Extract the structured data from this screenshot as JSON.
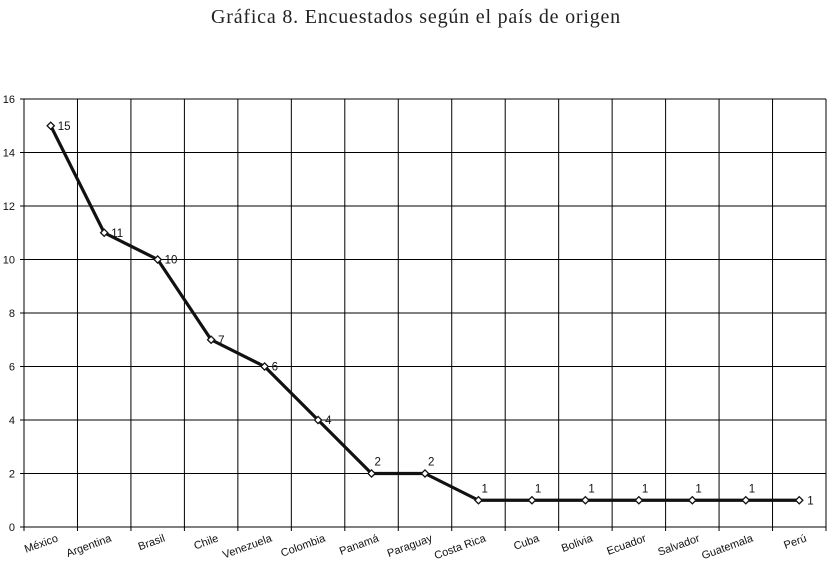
{
  "chart_data": {
    "type": "line",
    "title": "Gráfica 8. Encuestados según el país de origen",
    "categories": [
      "México",
      "Argentina",
      "Brasil",
      "Chile",
      "Venezuela",
      "Colombia",
      "Panamá",
      "Paraguay",
      "Costa Rica",
      "Cuba",
      "Bolivia",
      "Ecuador",
      "Salvador",
      "Guatemala",
      "Perú"
    ],
    "series": [
      {
        "values": [
          15,
          11,
          10,
          7,
          6,
          4,
          2,
          2,
          1,
          1,
          1,
          1,
          1,
          1,
          1
        ]
      }
    ],
    "ylim": [
      0,
      16
    ],
    "yticks": [
      0,
      2,
      4,
      6,
      8,
      10,
      12,
      14,
      16
    ],
    "xlabel": "",
    "ylabel": "",
    "grid": true,
    "legend": "none",
    "line_color": "#111111",
    "marker_fill": "#ffffff"
  }
}
